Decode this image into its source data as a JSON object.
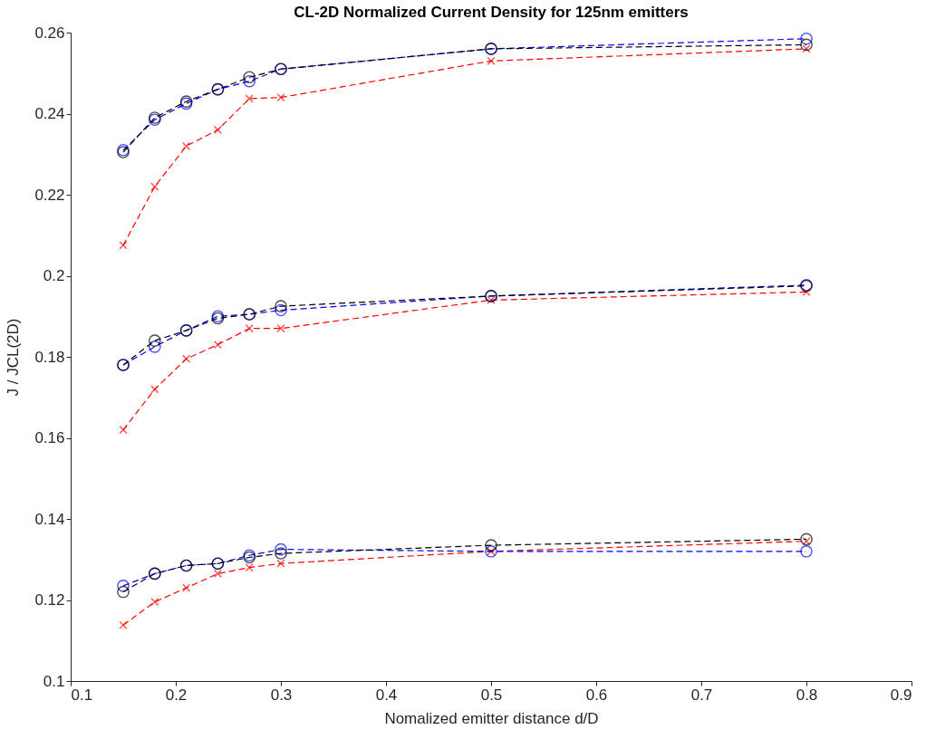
{
  "chart_data": {
    "type": "line",
    "title": "CL-2D Normalized Current Density for 125nm emitters",
    "xlabel": "Nomalized emitter distance d/D",
    "ylabel": "J / JCL(2D)",
    "x": [
      0.15,
      0.18,
      0.21,
      0.24,
      0.27,
      0.3,
      0.5,
      0.8
    ],
    "xlim": [
      0.1,
      0.9
    ],
    "xticks": [
      0.1,
      0.2,
      0.3,
      0.4,
      0.5,
      0.6,
      0.7,
      0.8,
      0.9
    ],
    "ylim": [
      0.1,
      0.26
    ],
    "yticks": [
      0.1,
      0.12,
      0.14,
      0.16,
      0.18,
      0.2,
      0.22,
      0.24,
      0.26
    ],
    "grid": false,
    "line_style": "dashed",
    "series": [
      {
        "color": "#ff0000",
        "marker": "cross",
        "values": [
          0.2075,
          0.222,
          0.232,
          0.236,
          0.2437,
          0.244,
          0.253,
          0.256
        ]
      },
      {
        "color": "#0000ff",
        "marker": "circle",
        "values": [
          0.231,
          0.2385,
          0.2425,
          0.246,
          0.248,
          0.251,
          0.256,
          0.2585
        ]
      },
      {
        "color": "#000000",
        "marker": "circle",
        "values": [
          0.2305,
          0.239,
          0.243,
          0.246,
          0.249,
          0.251,
          0.256,
          0.257
        ]
      },
      {
        "color": "#ff0000",
        "marker": "cross",
        "values": [
          0.162,
          0.172,
          0.1795,
          0.183,
          0.187,
          0.187,
          0.194,
          0.196
        ]
      },
      {
        "color": "#0000ff",
        "marker": "circle",
        "values": [
          0.178,
          0.1825,
          0.1865,
          0.19,
          0.1905,
          0.1915,
          0.195,
          0.1977
        ]
      },
      {
        "color": "#000000",
        "marker": "circle",
        "values": [
          0.178,
          0.184,
          0.1865,
          0.1895,
          0.1905,
          0.1925,
          0.195,
          0.1975
        ]
      },
      {
        "color": "#ff0000",
        "marker": "cross",
        "values": [
          0.1138,
          0.1195,
          0.123,
          0.1265,
          0.128,
          0.129,
          0.132,
          0.1345
        ]
      },
      {
        "color": "#0000ff",
        "marker": "circle",
        "values": [
          0.1235,
          0.1265,
          0.1285,
          0.129,
          0.131,
          0.1325,
          0.132,
          0.132
        ]
      },
      {
        "color": "#000000",
        "marker": "circle",
        "values": [
          0.122,
          0.1265,
          0.1285,
          0.129,
          0.1305,
          0.1315,
          0.1335,
          0.135
        ]
      }
    ]
  }
}
